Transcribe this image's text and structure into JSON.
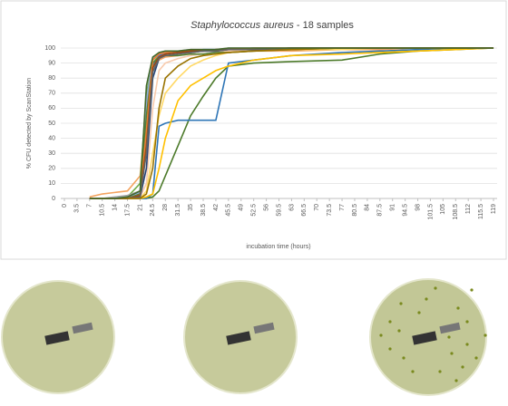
{
  "chart_data": {
    "type": "line",
    "title_species": "Staphylococcus aureus",
    "title_suffix": "- 18 samples",
    "ylabel": "% CFU detected by ScanStation",
    "xlabel": "incubation time (hours)",
    "ylim": [
      0,
      100
    ],
    "yticks": [
      0,
      10,
      20,
      30,
      40,
      50,
      60,
      70,
      80,
      90,
      100
    ],
    "grid": true,
    "xlim": [
      -1,
      120
    ],
    "xticks": [
      0,
      3.5,
      7,
      10.5,
      14,
      17.5,
      21,
      24.5,
      28,
      31.5,
      35,
      38.5,
      42,
      45.5,
      49,
      52.5,
      56,
      59.5,
      63,
      66.5,
      70,
      73.5,
      77,
      80.5,
      84,
      87.5,
      91,
      94.5,
      98,
      101.5,
      105,
      108.5,
      112,
      115.5,
      119
    ],
    "x": [
      7,
      10.5,
      14,
      17.5,
      21,
      22.75,
      24.5,
      26.25,
      28,
      31.5,
      35,
      38.5,
      42,
      45.5,
      52.5,
      63,
      77,
      87.5,
      98,
      108.5,
      119
    ],
    "series": [
      {
        "color": "#4c7a2a",
        "values": [
          0,
          0,
          0,
          0,
          0,
          0,
          1,
          5,
          15,
          35,
          55,
          68,
          80,
          88,
          90,
          91,
          92,
          96,
          98,
          99,
          100
        ]
      },
      {
        "color": "#2e75b6",
        "values": [
          0,
          0,
          0,
          0,
          0,
          0,
          3,
          48,
          50,
          52,
          52,
          52,
          52,
          90,
          92,
          95,
          97,
          98,
          99,
          100,
          100
        ]
      },
      {
        "color": "#ffc000",
        "values": [
          0,
          0,
          0,
          0,
          0,
          1,
          3,
          20,
          40,
          65,
          75,
          80,
          85,
          88,
          92,
          95,
          96,
          97,
          98,
          99,
          100
        ]
      },
      {
        "color": "#f4a460",
        "values": [
          1,
          3,
          4,
          5,
          15,
          60,
          88,
          92,
          94,
          95,
          96,
          96,
          97,
          97,
          98,
          98,
          99,
          99,
          100,
          100,
          100
        ]
      },
      {
        "color": "#70ad47",
        "values": [
          0,
          0,
          0,
          1,
          10,
          70,
          90,
          95,
          97,
          98,
          98,
          98,
          99,
          99,
          99,
          100,
          100,
          100,
          100,
          100,
          100
        ]
      },
      {
        "color": "#a5a5a5",
        "values": [
          0,
          0,
          1,
          2,
          5,
          60,
          93,
          97,
          98,
          98,
          99,
          99,
          99,
          100,
          100,
          100,
          100,
          100,
          100,
          100,
          100
        ]
      },
      {
        "color": "#5b9bd5",
        "values": [
          0,
          0,
          0,
          1,
          3,
          50,
          85,
          95,
          97,
          98,
          98,
          99,
          99,
          99,
          100,
          100,
          100,
          100,
          100,
          100,
          100
        ]
      },
      {
        "color": "#4472c4",
        "values": [
          0,
          0,
          0,
          0,
          2,
          40,
          88,
          95,
          96,
          97,
          98,
          98,
          98,
          99,
          99,
          100,
          100,
          100,
          100,
          100,
          100
        ]
      },
      {
        "color": "#f8cbad",
        "values": [
          0,
          0,
          0,
          0,
          1,
          10,
          60,
          85,
          90,
          93,
          95,
          96,
          97,
          98,
          99,
          100,
          100,
          100,
          100,
          100,
          100
        ]
      },
      {
        "color": "#ffd966",
        "values": [
          0,
          0,
          0,
          0,
          0,
          5,
          30,
          55,
          70,
          80,
          88,
          92,
          95,
          97,
          98,
          99,
          99,
          100,
          100,
          100,
          100
        ]
      },
      {
        "color": "#8faadc",
        "values": [
          0,
          0,
          0,
          1,
          4,
          65,
          92,
          96,
          97,
          98,
          98,
          99,
          99,
          99,
          100,
          100,
          100,
          100,
          100,
          100,
          100
        ]
      },
      {
        "color": "#548235",
        "values": [
          0,
          0,
          0,
          0,
          3,
          55,
          90,
          94,
          95,
          95,
          96,
          96,
          97,
          97,
          98,
          99,
          100,
          100,
          100,
          100,
          100
        ]
      },
      {
        "color": "#ed7d31",
        "values": [
          0,
          0,
          0,
          0,
          2,
          45,
          92,
          96,
          97,
          98,
          98,
          98,
          99,
          99,
          100,
          100,
          100,
          100,
          100,
          100,
          100
        ]
      },
      {
        "color": "#264478",
        "values": [
          0,
          0,
          0,
          0,
          1,
          20,
          80,
          93,
          96,
          97,
          97,
          98,
          98,
          99,
          99,
          100,
          100,
          100,
          100,
          100,
          100
        ]
      },
      {
        "color": "#9e480e",
        "values": [
          0,
          0,
          0,
          0,
          2,
          35,
          87,
          94,
          96,
          97,
          98,
          98,
          99,
          99,
          99,
          100,
          100,
          100,
          100,
          100,
          100
        ]
      },
      {
        "color": "#636363",
        "values": [
          0,
          0,
          0,
          0,
          1,
          30,
          84,
          93,
          95,
          96,
          97,
          98,
          98,
          99,
          99,
          100,
          100,
          100,
          100,
          100,
          100
        ]
      },
      {
        "color": "#997300",
        "values": [
          0,
          0,
          0,
          0,
          0,
          3,
          20,
          60,
          80,
          88,
          93,
          95,
          96,
          97,
          98,
          99,
          100,
          100,
          100,
          100,
          100
        ]
      },
      {
        "color": "#43682b",
        "values": [
          0,
          0,
          0,
          1,
          5,
          75,
          94,
          97,
          98,
          98,
          99,
          99,
          99,
          100,
          100,
          100,
          100,
          100,
          100,
          100,
          100
        ]
      }
    ]
  }
}
